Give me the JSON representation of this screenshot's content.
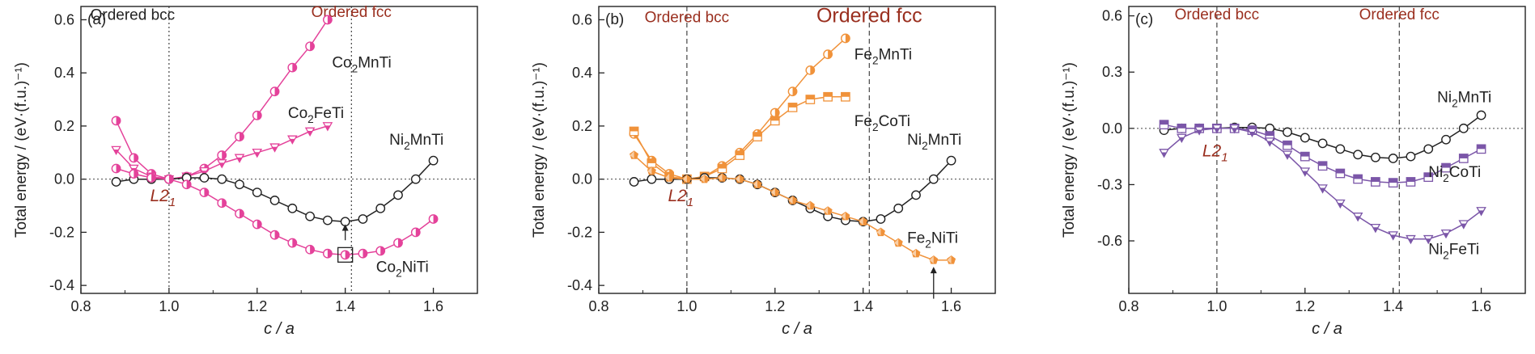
{
  "chart_data": [
    {
      "type": "line",
      "panel_label": "(a)",
      "xlabel": "c / a",
      "ylabel": "Total energy / (eV·(f.u.)⁻¹)",
      "xlim": [
        0.8,
        1.7
      ],
      "ylim": [
        -0.43,
        0.65
      ],
      "xticks": [
        0.8,
        1.0,
        1.2,
        1.4,
        1.6
      ],
      "yticks": [
        -0.4,
        -0.2,
        0.0,
        0.2,
        0.4,
        0.6
      ],
      "zero_line": true,
      "vlines": [
        {
          "x": 1.0,
          "label": "Ordered bcc",
          "color": "#222222"
        },
        {
          "x": 1.414,
          "label": "Ordered fcc",
          "color": "#9a2f1f"
        }
      ],
      "label_positions": {
        "bcc_y": 0.6,
        "fcc_y": 0.61
      },
      "annotation": {
        "text": "L2",
        "sub": "1",
        "x": 0.99,
        "y": -0.04,
        "color": "#9a2f1f"
      },
      "arrow": {
        "x": 1.4,
        "y1": -0.23,
        "y2": -0.17
      },
      "box": {
        "x": 1.4,
        "y": -0.285
      },
      "series": [
        {
          "name": "Co₂MnTi",
          "label": "Co",
          "sub": "2",
          "rest": "MnTi",
          "lx": 1.37,
          "ly": 0.42,
          "color": "#e4429a",
          "marker": "halfcircle",
          "x": [
            0.88,
            0.92,
            0.96,
            1.0,
            1.04,
            1.08,
            1.12,
            1.16,
            1.2,
            1.24,
            1.28,
            1.32,
            1.36
          ],
          "y": [
            0.22,
            0.08,
            0.02,
            0.0,
            0.01,
            0.04,
            0.09,
            0.16,
            0.24,
            0.33,
            0.42,
            0.5,
            0.6
          ]
        },
        {
          "name": "Co₂FeTi",
          "label": "Co",
          "sub": "2",
          "rest": "FeTi",
          "lx": 1.27,
          "ly": 0.23,
          "color": "#e4429a",
          "marker": "triangle",
          "x": [
            0.88,
            0.92,
            0.96,
            1.0,
            1.04,
            1.08,
            1.12,
            1.16,
            1.2,
            1.24,
            1.28,
            1.32,
            1.36
          ],
          "y": [
            0.11,
            0.04,
            0.01,
            0.0,
            0.01,
            0.03,
            0.06,
            0.08,
            0.1,
            0.12,
            0.15,
            0.18,
            0.2
          ]
        },
        {
          "name": "Ni₂MnTi",
          "label": "Ni",
          "sub": "2",
          "rest": "MnTi",
          "lx": 1.5,
          "ly": 0.13,
          "color": "#222222",
          "marker": "circle",
          "x": [
            0.88,
            0.92,
            0.96,
            1.0,
            1.04,
            1.08,
            1.12,
            1.16,
            1.2,
            1.24,
            1.28,
            1.32,
            1.36,
            1.4,
            1.44,
            1.48,
            1.52,
            1.56,
            1.6
          ],
          "y": [
            -0.01,
            0.0,
            0.0,
            0.0,
            0.005,
            0.005,
            0.0,
            -0.02,
            -0.05,
            -0.08,
            -0.11,
            -0.14,
            -0.155,
            -0.16,
            -0.15,
            -0.11,
            -0.06,
            0.0,
            0.07
          ]
        },
        {
          "name": "Co₂NiTi",
          "label": "Co",
          "sub": "2",
          "rest": "NiTi",
          "lx": 1.47,
          "ly": -0.35,
          "color": "#e4429a",
          "marker": "halfcircle",
          "x": [
            0.88,
            0.92,
            0.96,
            1.0,
            1.04,
            1.08,
            1.12,
            1.16,
            1.2,
            1.24,
            1.28,
            1.32,
            1.36,
            1.4,
            1.44,
            1.48,
            1.52,
            1.56,
            1.6
          ],
          "y": [
            0.04,
            0.02,
            0.005,
            0.0,
            -0.02,
            -0.05,
            -0.09,
            -0.13,
            -0.17,
            -0.21,
            -0.24,
            -0.265,
            -0.28,
            -0.285,
            -0.28,
            -0.27,
            -0.24,
            -0.2,
            -0.15
          ]
        }
      ]
    },
    {
      "type": "line",
      "panel_label": "(b)",
      "xlabel": "c / a",
      "ylabel": "Total energy / (eV·(f.u.)⁻¹)",
      "xlim": [
        0.8,
        1.7
      ],
      "ylim": [
        -0.43,
        0.65
      ],
      "xticks": [
        0.8,
        1.0,
        1.2,
        1.4,
        1.6
      ],
      "yticks": [
        -0.4,
        -0.2,
        0.0,
        0.2,
        0.4,
        0.6
      ],
      "zero_line": true,
      "vlines": [
        {
          "x": 1.0,
          "label": "Ordered bcc",
          "color": "#9a2f1f"
        },
        {
          "x": 1.414,
          "label": "Ordered fcc",
          "color": "#9a2f1f"
        }
      ],
      "label_positions": {
        "bcc_y": 0.59,
        "fcc_y": 0.59
      },
      "annotation": {
        "text": "L2",
        "sub": "1",
        "x": 0.99,
        "y": -0.04,
        "color": "#9a2f1f"
      },
      "arrow": {
        "x": 1.56,
        "y1": -0.45,
        "y2": -0.33
      },
      "series": [
        {
          "name": "Fe₂MnTi",
          "label": "Fe",
          "sub": "2",
          "rest": "MnTi",
          "lx": 1.38,
          "ly": 0.45,
          "color": "#f0923a",
          "marker": "halfcircle",
          "x": [
            0.88,
            0.92,
            0.96,
            1.0,
            1.04,
            1.08,
            1.12,
            1.16,
            1.2,
            1.24,
            1.28,
            1.32,
            1.36
          ],
          "y": [
            0.17,
            0.07,
            0.02,
            0.0,
            0.01,
            0.05,
            0.1,
            0.17,
            0.25,
            0.33,
            0.41,
            0.47,
            0.53
          ]
        },
        {
          "name": "Fe₂CoTi",
          "label": "Fe",
          "sub": "2",
          "rest": "CoTi",
          "lx": 1.38,
          "ly": 0.2,
          "color": "#f0923a",
          "marker": "square",
          "x": [
            0.88,
            0.92,
            0.96,
            1.0,
            1.04,
            1.08,
            1.12,
            1.16,
            1.2,
            1.24,
            1.28,
            1.32,
            1.36
          ],
          "y": [
            0.18,
            0.06,
            0.01,
            0.0,
            0.01,
            0.04,
            0.09,
            0.16,
            0.22,
            0.27,
            0.3,
            0.31,
            0.31
          ]
        },
        {
          "name": "Ni₂MnTi",
          "label": "Ni",
          "sub": "2",
          "rest": "MnTi",
          "lx": 1.5,
          "ly": 0.13,
          "color": "#222222",
          "marker": "circle",
          "x": [
            0.88,
            0.92,
            0.96,
            1.0,
            1.04,
            1.08,
            1.12,
            1.16,
            1.2,
            1.24,
            1.28,
            1.32,
            1.36,
            1.4,
            1.44,
            1.48,
            1.52,
            1.56,
            1.6
          ],
          "y": [
            -0.01,
            0.0,
            0.0,
            0.0,
            0.005,
            0.005,
            0.0,
            -0.02,
            -0.05,
            -0.08,
            -0.11,
            -0.14,
            -0.155,
            -0.16,
            -0.15,
            -0.11,
            -0.06,
            0.0,
            0.07
          ]
        },
        {
          "name": "Fe₂NiTi",
          "label": "Fe",
          "sub": "2",
          "rest": "NiTi",
          "lx": 1.5,
          "ly": -0.24,
          "color": "#f0923a",
          "marker": "pentagon",
          "x": [
            0.88,
            0.92,
            0.96,
            1.0,
            1.04,
            1.08,
            1.12,
            1.16,
            1.2,
            1.24,
            1.28,
            1.32,
            1.36,
            1.4,
            1.44,
            1.48,
            1.52,
            1.56,
            1.6
          ],
          "y": [
            0.09,
            0.03,
            0.005,
            0.0,
            0.0,
            0.005,
            0.0,
            -0.02,
            -0.05,
            -0.08,
            -0.1,
            -0.12,
            -0.14,
            -0.16,
            -0.2,
            -0.24,
            -0.28,
            -0.305,
            -0.305
          ]
        }
      ]
    },
    {
      "type": "line",
      "panel_label": "(c)",
      "xlabel": "c / a",
      "ylabel": "Total energy / (eV·(f.u.)⁻¹)",
      "xlim": [
        0.8,
        1.7
      ],
      "ylim": [
        -0.88,
        0.65
      ],
      "xticks": [
        0.8,
        1.0,
        1.2,
        1.4,
        1.6
      ],
      "yticks": [
        -0.6,
        -0.3,
        0.0,
        0.3,
        0.6
      ],
      "zero_line": true,
      "vlines": [
        {
          "x": 1.0,
          "label": "Ordered bcc",
          "color": "#9a2f1f"
        },
        {
          "x": 1.414,
          "label": "Ordered fcc",
          "color": "#9a2f1f"
        }
      ],
      "label_positions": {
        "bcc_y": 0.58,
        "fcc_y": 0.58
      },
      "annotation": {
        "text": "L2",
        "sub": "1",
        "x": 1.0,
        "y": -0.09,
        "color": "#9a2f1f"
      },
      "series": [
        {
          "name": "Ni₂MnTi",
          "label": "Ni",
          "sub": "2",
          "rest": "MnTi",
          "lx": 1.5,
          "ly": 0.14,
          "color": "#222222",
          "marker": "circle",
          "x": [
            0.88,
            0.92,
            0.96,
            1.0,
            1.04,
            1.08,
            1.12,
            1.16,
            1.2,
            1.24,
            1.28,
            1.32,
            1.36,
            1.4,
            1.44,
            1.48,
            1.52,
            1.56,
            1.6
          ],
          "y": [
            -0.01,
            0.0,
            0.0,
            0.0,
            0.005,
            0.005,
            0.0,
            -0.02,
            -0.05,
            -0.08,
            -0.11,
            -0.14,
            -0.155,
            -0.16,
            -0.15,
            -0.11,
            -0.06,
            0.0,
            0.07
          ]
        },
        {
          "name": "Ni₂CoTi",
          "label": "Ni",
          "sub": "2",
          "rest": "CoTi",
          "lx": 1.48,
          "ly": -0.26,
          "color": "#7b56a8",
          "marker": "square",
          "x": [
            0.88,
            0.92,
            0.96,
            1.0,
            1.04,
            1.08,
            1.12,
            1.16,
            1.2,
            1.24,
            1.28,
            1.32,
            1.36,
            1.4,
            1.44,
            1.48,
            1.52,
            1.56,
            1.6
          ],
          "y": [
            0.02,
            0.0,
            0.0,
            0.0,
            0.0,
            -0.01,
            -0.04,
            -0.09,
            -0.15,
            -0.2,
            -0.24,
            -0.27,
            -0.285,
            -0.29,
            -0.285,
            -0.26,
            -0.21,
            -0.16,
            -0.11
          ]
        },
        {
          "name": "Ni₂FeTi",
          "label": "Ni",
          "sub": "2",
          "rest": "FeTi",
          "lx": 1.48,
          "ly": -0.67,
          "color": "#7b56a8",
          "marker": "triangle",
          "x": [
            0.88,
            0.92,
            0.96,
            1.0,
            1.04,
            1.08,
            1.12,
            1.16,
            1.2,
            1.24,
            1.28,
            1.32,
            1.36,
            1.4,
            1.44,
            1.48,
            1.52,
            1.56,
            1.6
          ],
          "y": [
            -0.13,
            -0.05,
            -0.01,
            0.0,
            0.0,
            -0.02,
            -0.07,
            -0.14,
            -0.23,
            -0.32,
            -0.4,
            -0.47,
            -0.53,
            -0.57,
            -0.59,
            -0.59,
            -0.56,
            -0.51,
            -0.44
          ]
        }
      ]
    }
  ]
}
